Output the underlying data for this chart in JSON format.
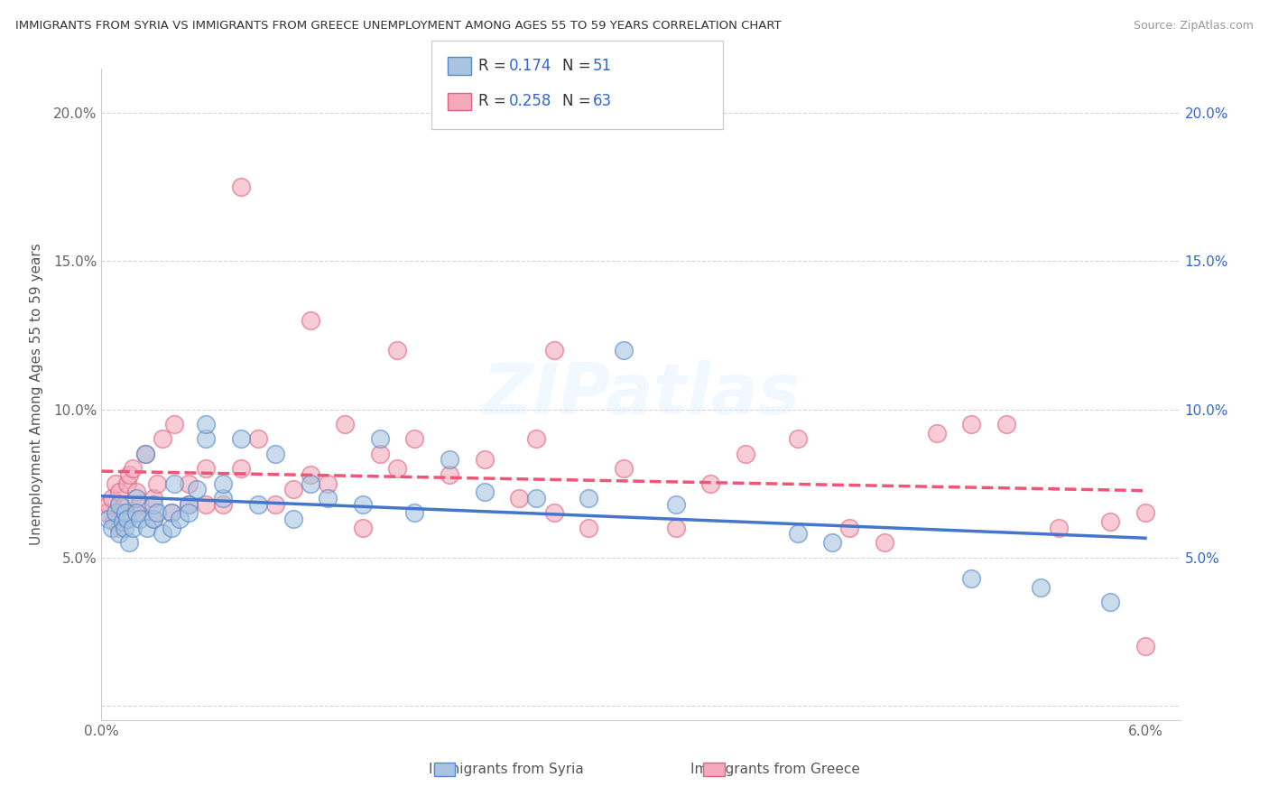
{
  "title": "IMMIGRANTS FROM SYRIA VS IMMIGRANTS FROM GREECE UNEMPLOYMENT AMONG AGES 55 TO 59 YEARS CORRELATION CHART",
  "source": "Source: ZipAtlas.com",
  "ylabel": "Unemployment Among Ages 55 to 59 years",
  "xlim": [
    0,
    0.062
  ],
  "ylim": [
    -0.005,
    0.215
  ],
  "xtick_vals": [
    0.0,
    0.01,
    0.02,
    0.03,
    0.04,
    0.05,
    0.06
  ],
  "xtick_labels": [
    "0.0%",
    "",
    "",
    "",
    "",
    "",
    "6.0%"
  ],
  "ytick_vals": [
    0.0,
    0.05,
    0.1,
    0.15,
    0.2
  ],
  "ytick_labels_left": [
    "",
    "5.0%",
    "10.0%",
    "15.0%",
    "20.0%"
  ],
  "ytick_labels_right": [
    "",
    "5.0%",
    "10.0%",
    "15.0%",
    "20.0%"
  ],
  "legend_syria_R": "0.174",
  "legend_syria_N": "51",
  "legend_greece_R": "0.258",
  "legend_greece_N": "63",
  "legend_label_syria": "Immigrants from Syria",
  "legend_label_greece": "Immigrants from Greece",
  "color_syria_fill": "#A8C4E0",
  "color_syria_edge": "#5588CC",
  "color_greece_fill": "#F4AABB",
  "color_greece_edge": "#E06080",
  "color_syria_line": "#4477CC",
  "color_greece_line": "#EE5577",
  "color_r_value": "#3366CC",
  "color_n_value": "#3366CC",
  "watermark_text": "ZIPatlas",
  "syria_x": [
    0.0004,
    0.0006,
    0.0008,
    0.001,
    0.001,
    0.0012,
    0.0013,
    0.0014,
    0.0015,
    0.0016,
    0.0018,
    0.002,
    0.002,
    0.0022,
    0.0025,
    0.0026,
    0.003,
    0.003,
    0.0032,
    0.0035,
    0.004,
    0.004,
    0.0042,
    0.0045,
    0.005,
    0.005,
    0.0055,
    0.006,
    0.006,
    0.007,
    0.007,
    0.008,
    0.009,
    0.01,
    0.011,
    0.012,
    0.013,
    0.015,
    0.016,
    0.018,
    0.02,
    0.022,
    0.025,
    0.028,
    0.03,
    0.033,
    0.04,
    0.042,
    0.05,
    0.054,
    0.058
  ],
  "syria_y": [
    0.063,
    0.06,
    0.065,
    0.068,
    0.058,
    0.062,
    0.06,
    0.065,
    0.063,
    0.055,
    0.06,
    0.07,
    0.065,
    0.063,
    0.085,
    0.06,
    0.063,
    0.068,
    0.065,
    0.058,
    0.065,
    0.06,
    0.075,
    0.063,
    0.068,
    0.065,
    0.073,
    0.09,
    0.095,
    0.07,
    0.075,
    0.09,
    0.068,
    0.085,
    0.063,
    0.075,
    0.07,
    0.068,
    0.09,
    0.065,
    0.083,
    0.072,
    0.07,
    0.07,
    0.12,
    0.068,
    0.058,
    0.055,
    0.043,
    0.04,
    0.035
  ],
  "greece_x": [
    0.0003,
    0.0004,
    0.0006,
    0.0007,
    0.0008,
    0.001,
    0.001,
    0.0012,
    0.0013,
    0.0014,
    0.0015,
    0.0016,
    0.0018,
    0.002,
    0.002,
    0.0022,
    0.0025,
    0.003,
    0.003,
    0.0032,
    0.0035,
    0.004,
    0.0042,
    0.005,
    0.005,
    0.006,
    0.006,
    0.007,
    0.008,
    0.009,
    0.01,
    0.011,
    0.012,
    0.013,
    0.014,
    0.015,
    0.016,
    0.017,
    0.018,
    0.02,
    0.022,
    0.024,
    0.025,
    0.026,
    0.028,
    0.03,
    0.033,
    0.035,
    0.037,
    0.04,
    0.043,
    0.045,
    0.048,
    0.05,
    0.052,
    0.055,
    0.058,
    0.06,
    0.012,
    0.008,
    0.017,
    0.026,
    0.06
  ],
  "greece_y": [
    0.065,
    0.068,
    0.07,
    0.062,
    0.075,
    0.06,
    0.072,
    0.065,
    0.068,
    0.063,
    0.075,
    0.078,
    0.08,
    0.065,
    0.072,
    0.068,
    0.085,
    0.063,
    0.07,
    0.075,
    0.09,
    0.065,
    0.095,
    0.068,
    0.075,
    0.068,
    0.08,
    0.068,
    0.08,
    0.09,
    0.068,
    0.073,
    0.078,
    0.075,
    0.095,
    0.06,
    0.085,
    0.08,
    0.09,
    0.078,
    0.083,
    0.07,
    0.09,
    0.065,
    0.06,
    0.08,
    0.06,
    0.075,
    0.085,
    0.09,
    0.06,
    0.055,
    0.092,
    0.095,
    0.095,
    0.06,
    0.062,
    0.065,
    0.13,
    0.175,
    0.12,
    0.12,
    0.02
  ]
}
